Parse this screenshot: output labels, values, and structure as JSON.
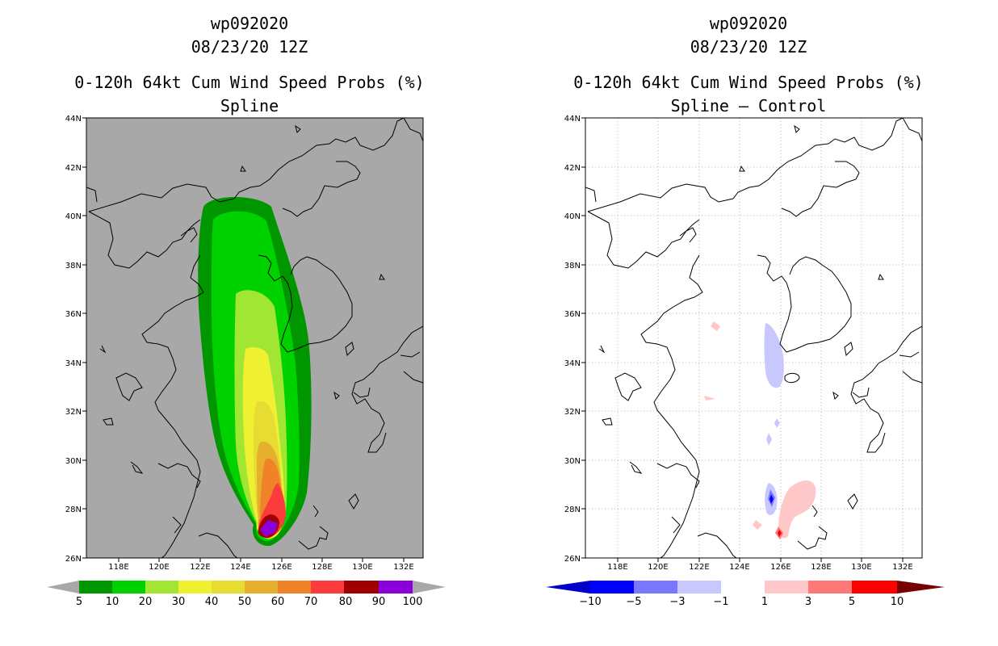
{
  "panels": [
    {
      "storm_id": "wp092020",
      "datetime": "08/23/20 12Z",
      "title": "0-120h 64kt Cum Wind Speed Probs (%)",
      "subtitle": "Spline",
      "colorbar": {
        "labels": [
          "5",
          "10",
          "20",
          "30",
          "40",
          "50",
          "60",
          "70",
          "80",
          "90",
          "100"
        ],
        "colors": [
          "#009600",
          "#00d200",
          "#a0e632",
          "#f0f032",
          "#e6dc32",
          "#e6af2d",
          "#f08228",
          "#fa3c3c",
          "#a00000",
          "#8c00dc"
        ]
      }
    },
    {
      "storm_id": "wp092020",
      "datetime": "08/23/20 12Z",
      "title": "0-120h 64kt Cum Wind Speed Probs (%)",
      "subtitle": "Spline – Control",
      "colorbar": {
        "labels": [
          "−10",
          "−5",
          "−3",
          "−1",
          "1",
          "3",
          "5",
          "10"
        ],
        "colors": [
          "#0000c8",
          "#0000ff",
          "#7878ff",
          "#c8c8ff",
          "#ffffff",
          "#ffc8c8",
          "#ff7878",
          "#ff0000",
          "#c80000",
          "#780000"
        ]
      }
    }
  ],
  "axes": {
    "lat_labels": [
      "26N",
      "28N",
      "30N",
      "32N",
      "34N",
      "36N",
      "38N",
      "40N",
      "42N",
      "44N"
    ],
    "lon_labels": [
      "118E",
      "120E",
      "122E",
      "124E",
      "126E",
      "128E",
      "130E",
      "132E"
    ]
  },
  "colors": {
    "land_bg": "#a8a8a8",
    "grid": "#b4b4b4",
    "coast": "#000000"
  }
}
